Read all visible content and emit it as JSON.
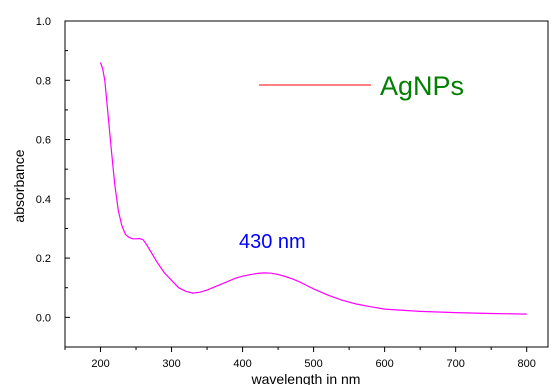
{
  "chart_data": {
    "type": "line",
    "xlabel": "wavelength in nm",
    "ylabel": "absorbance",
    "xlim": [
      150,
      830
    ],
    "ylim": [
      -0.1,
      1.0
    ],
    "x_ticks": [
      "200",
      "300",
      "400",
      "500",
      "600",
      "700",
      "800"
    ],
    "y_ticks": [
      "0.0",
      "0.2",
      "0.4",
      "0.6",
      "0.8",
      "1.0"
    ],
    "grid": false,
    "legend_position": "top-right",
    "series": [
      {
        "name": "AgNPs",
        "color": "#ff00ff",
        "legend_color": "#ff0000",
        "legend_text_color": "#008000",
        "x": [
          200,
          203,
          206,
          210,
          215,
          220,
          225,
          230,
          235,
          240,
          245,
          250,
          255,
          260,
          265,
          270,
          280,
          290,
          300,
          310,
          320,
          330,
          340,
          350,
          360,
          370,
          380,
          390,
          400,
          410,
          420,
          430,
          440,
          450,
          460,
          470,
          480,
          490,
          500,
          520,
          540,
          560,
          580,
          600,
          650,
          700,
          750,
          800
        ],
        "y": [
          0.86,
          0.84,
          0.8,
          0.7,
          0.57,
          0.45,
          0.36,
          0.31,
          0.28,
          0.27,
          0.265,
          0.265,
          0.266,
          0.262,
          0.245,
          0.225,
          0.185,
          0.15,
          0.125,
          0.1,
          0.088,
          0.082,
          0.085,
          0.092,
          0.102,
          0.112,
          0.122,
          0.132,
          0.139,
          0.144,
          0.148,
          0.15,
          0.149,
          0.145,
          0.138,
          0.13,
          0.12,
          0.108,
          0.096,
          0.075,
          0.058,
          0.045,
          0.036,
          0.028,
          0.02,
          0.016,
          0.013,
          0.011
        ]
      }
    ],
    "annotations": [
      {
        "text": "430 nm",
        "x": 430,
        "y": 0.23,
        "color": "#0000ff"
      }
    ]
  }
}
